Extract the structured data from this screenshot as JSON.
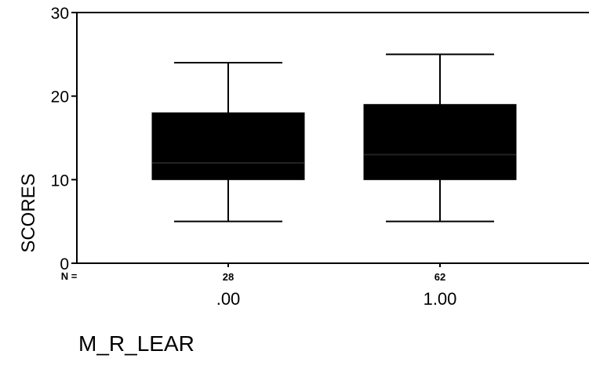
{
  "chart_data": {
    "type": "boxplot",
    "ylabel": "SCORES",
    "xlabel": "M_R_LEAR",
    "ylim": [
      0,
      30
    ],
    "yticks": [
      0,
      10,
      20,
      30
    ],
    "n_label": "N =",
    "grid": false,
    "boxes": [
      {
        "category": ".00",
        "n": "28",
        "min": 5,
        "q1": 10,
        "median": 12,
        "q3": 18,
        "max": 24
      },
      {
        "category": "1.00",
        "n": "62",
        "min": 5,
        "q1": 10,
        "median": 13,
        "q3": 19,
        "max": 25
      }
    ],
    "colors": {
      "box_fill": "#000000",
      "axis": "#000000",
      "background": "#ffffff"
    }
  }
}
